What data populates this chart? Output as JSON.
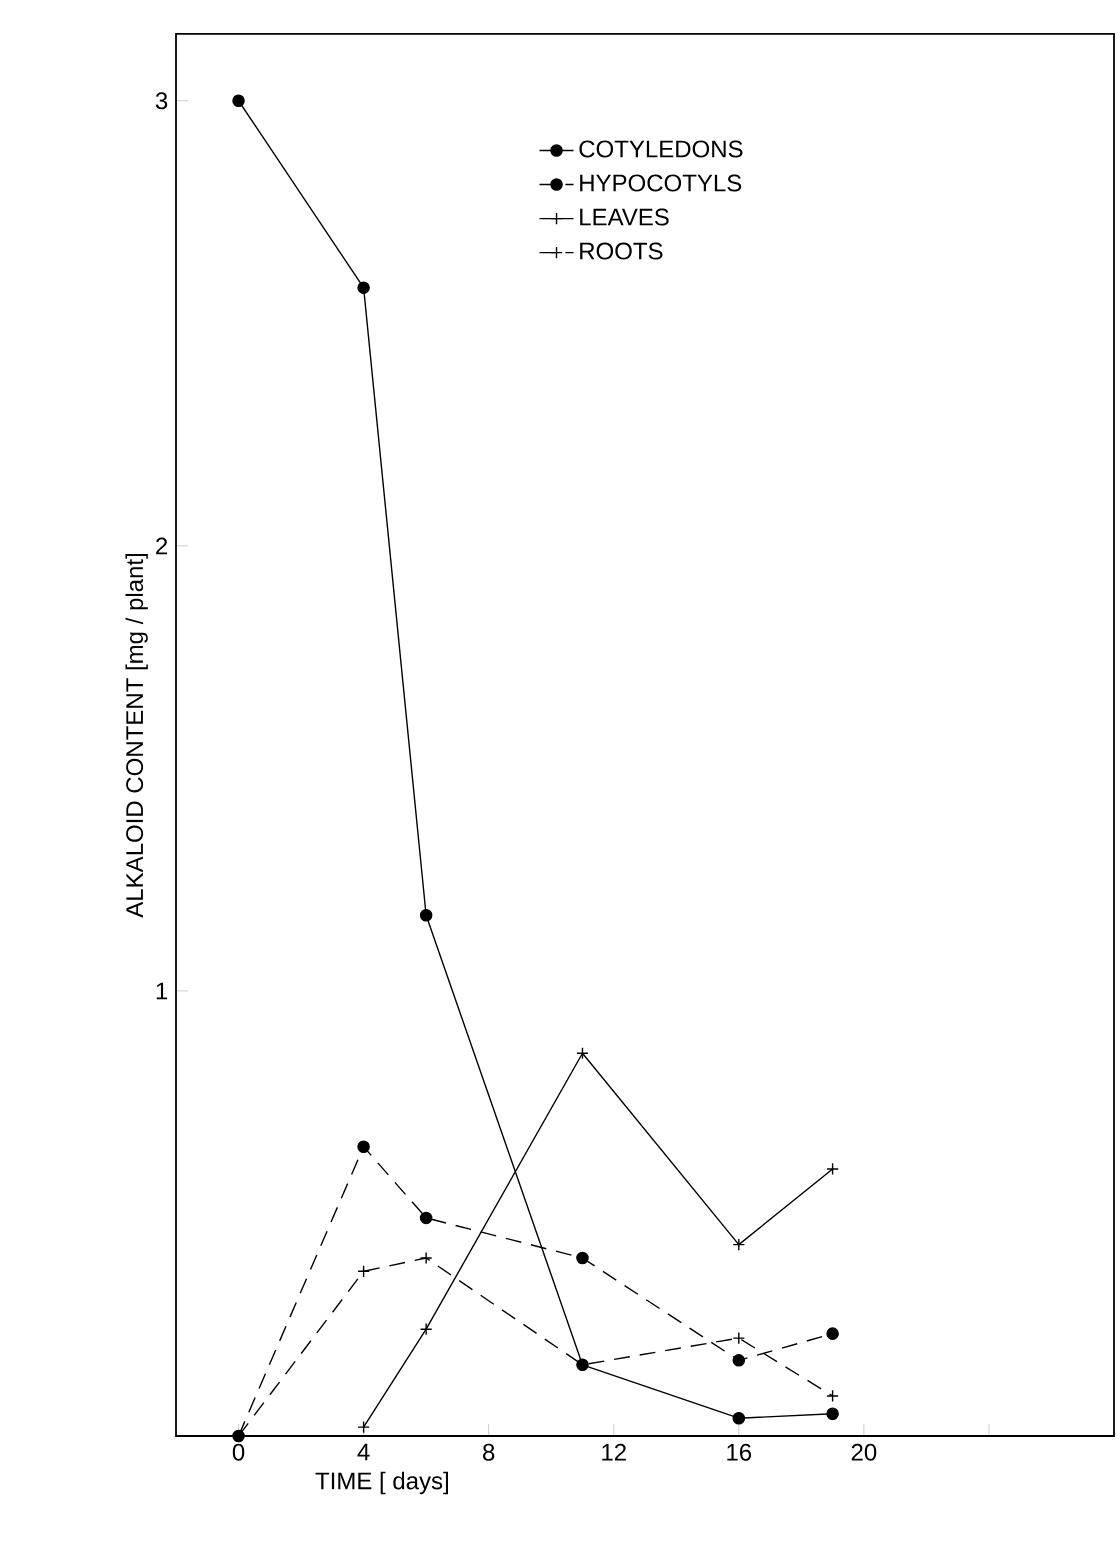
{
  "chart_data": {
    "type": "line",
    "xlabel": "TIME [ days]",
    "ylabel": "ALKALOID CONTENT [mg / plant]",
    "xlim": [
      -2,
      28
    ],
    "xticks": [
      0,
      4,
      8,
      12,
      16,
      20,
      {
        "value": 24,
        "label": null
      }
    ],
    "ylim": [
      0,
      3.15
    ],
    "yticks": [
      {
        "value": 0,
        "label": null
      },
      1,
      2,
      3
    ],
    "legend": "top",
    "grid": false,
    "series": [
      {
        "name": "COTYLEDONS",
        "color": "#000000",
        "marker": "circle",
        "line_style": "solid",
        "x": [
          0,
          4,
          6,
          11,
          16,
          19
        ],
        "values": [
          3.0,
          2.58,
          1.17,
          0.16,
          0.04,
          0.05
        ]
      },
      {
        "name": "HYPOCOTYLS",
        "color": "#000000",
        "marker": "circle",
        "line_style": "dashed",
        "x": [
          0,
          4,
          6,
          11,
          16,
          19
        ],
        "values": [
          0,
          0.65,
          0.49,
          0.4,
          0.17,
          0.23
        ]
      },
      {
        "name": "LEAVES",
        "color": "#000000",
        "marker": "cross",
        "line_style": "solid",
        "x": [
          4,
          6,
          11,
          16,
          19
        ],
        "values": [
          0.02,
          0.24,
          0.86,
          0.43,
          0.6
        ]
      },
      {
        "name": "ROOTS",
        "color": "#000000",
        "marker": "cross",
        "line_style": "dashed",
        "x": [
          0,
          4,
          6,
          11,
          16,
          19
        ],
        "values": [
          0,
          0.37,
          0.4,
          0.16,
          0.22,
          0.09
        ]
      }
    ]
  }
}
